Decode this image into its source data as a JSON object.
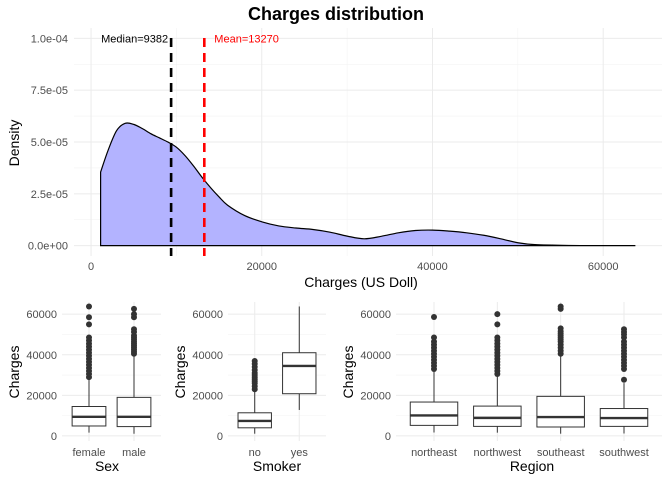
{
  "chart_data": [
    {
      "type": "area",
      "title": "Charges distribution",
      "xlabel": "Charges (US Doll)",
      "ylabel": "Density",
      "xlim": [
        1122,
        63770
      ],
      "x_ticks": [
        0,
        20000,
        40000,
        60000
      ],
      "x_tick_labels": [
        "0",
        "20000",
        "40000",
        "60000"
      ],
      "y_ticks": [
        0,
        2.5e-05,
        5e-05,
        7.5e-05,
        0.0001
      ],
      "y_tick_labels": [
        "0.0e+00",
        "2.5e-05",
        "5.0e-05",
        "7.5e-05",
        "1.0e-04"
      ],
      "ylim": [
        0,
        0.0001
      ],
      "fill_color": "#b3b3ff",
      "line_color": "#000000",
      "x": [
        1122,
        2000,
        3000,
        4000,
        5000,
        6000,
        7000,
        8000,
        9000,
        10000,
        11000,
        12000,
        13000,
        14000,
        15000,
        16000,
        18000,
        20000,
        22000,
        24000,
        26000,
        28000,
        30000,
        32000,
        34000,
        36000,
        38000,
        40000,
        42000,
        44000,
        46000,
        48000,
        50000,
        52000,
        56000,
        60000,
        63770
      ],
      "y": [
        3.55e-05,
        4.6e-05,
        5.55e-05,
        5.9e-05,
        5.85e-05,
        5.65e-05,
        5.4e-05,
        5.2e-05,
        5e-05,
        4.75e-05,
        4.35e-05,
        3.85e-05,
        3.3e-05,
        2.8e-05,
        2.35e-05,
        1.95e-05,
        1.45e-05,
        1.15e-05,
        9.5e-06,
        8.5e-06,
        7.8e-06,
        6.5e-06,
        4.6e-06,
        3.3e-06,
        4.5e-06,
        6.2e-06,
        7.3e-06,
        7.5e-06,
        7e-06,
        6.2e-06,
        5e-06,
        3.3e-06,
        1.4e-06,
        5e-07,
        1e-07,
        0,
        0
      ],
      "annotations": [
        {
          "label": "Median=9382",
          "value": 9382,
          "color": "#000000"
        },
        {
          "label": "Mean=13270",
          "value": 13270,
          "color": "#ff0000"
        }
      ]
    },
    {
      "type": "box",
      "xlabel": "Sex",
      "ylabel": "Charges",
      "ylim": [
        0,
        65000
      ],
      "y_ticks": [
        0,
        20000,
        40000,
        60000
      ],
      "y_tick_labels": [
        "0",
        "20000",
        "40000",
        "60000"
      ],
      "categories": [
        "female",
        "male"
      ],
      "boxes": [
        {
          "low": 1600,
          "q1": 4900,
          "median": 9400,
          "q3": 14500,
          "high": 28800,
          "outliers": [
            29000,
            30500,
            32000,
            33500,
            35000,
            36500,
            38000,
            39500,
            41000,
            42500,
            44000,
            45500,
            47000,
            48500,
            55000,
            58500,
            63800
          ]
        },
        {
          "low": 1100,
          "q1": 4600,
          "median": 9400,
          "q3": 19000,
          "high": 40000,
          "outliers": [
            40500,
            41500,
            42500,
            43500,
            44500,
            45500,
            46500,
            47500,
            48500,
            49500,
            51200,
            52600,
            58500,
            60000,
            62600
          ]
        }
      ]
    },
    {
      "type": "box",
      "xlabel": "Smoker",
      "ylabel": "Charges",
      "ylim": [
        0,
        65000
      ],
      "y_ticks": [
        0,
        20000,
        40000,
        60000
      ],
      "y_tick_labels": [
        "0",
        "20000",
        "40000",
        "60000"
      ],
      "categories": [
        "no",
        "yes"
      ],
      "boxes": [
        {
          "low": 1100,
          "q1": 4000,
          "median": 7400,
          "q3": 11400,
          "high": 22500,
          "outliers": [
            23000,
            24500,
            26000,
            27000,
            28000,
            29000,
            30000,
            31000,
            32500,
            34000,
            35500,
            36900
          ]
        },
        {
          "low": 12800,
          "q1": 20800,
          "median": 34500,
          "q3": 41000,
          "high": 63800,
          "outliers": []
        }
      ]
    },
    {
      "type": "box",
      "xlabel": "Region",
      "ylabel": "Charges",
      "ylim": [
        0,
        65000
      ],
      "y_ticks": [
        0,
        20000,
        40000,
        60000
      ],
      "y_tick_labels": [
        "0",
        "20000",
        "40000",
        "60000"
      ],
      "categories": [
        "northeast",
        "northwest",
        "southeast",
        "southwest"
      ],
      "boxes": [
        {
          "low": 1700,
          "q1": 5200,
          "median": 10100,
          "q3": 16700,
          "high": 32500,
          "outliers": [
            33000,
            34500,
            36000,
            37500,
            39000,
            40500,
            42000,
            43500,
            45000,
            46500,
            48500,
            58600
          ]
        },
        {
          "low": 1600,
          "q1": 4700,
          "median": 8900,
          "q3": 14700,
          "high": 30000,
          "outliers": [
            30500,
            32000,
            33500,
            35000,
            36500,
            38000,
            39500,
            41000,
            42500,
            44000,
            45500,
            47000,
            48500,
            55000,
            60000
          ]
        },
        {
          "low": 1100,
          "q1": 4400,
          "median": 9300,
          "q3": 19500,
          "high": 40000,
          "outliers": [
            40500,
            42000,
            43500,
            45000,
            46500,
            47500,
            48500,
            49500,
            50500,
            51500,
            53000,
            62600,
            63800
          ]
        },
        {
          "low": 1200,
          "q1": 4700,
          "median": 8800,
          "q3": 13500,
          "high": 26000,
          "outliers": [
            27700,
            33000,
            34500,
            36000,
            37500,
            39000,
            40500,
            42000,
            43500,
            45000,
            46500,
            48500,
            50000,
            51200,
            52600
          ]
        }
      ]
    }
  ]
}
